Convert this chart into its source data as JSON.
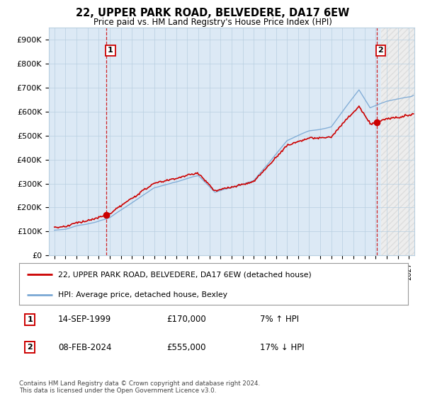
{
  "title": "22, UPPER PARK ROAD, BELVEDERE, DA17 6EW",
  "subtitle": "Price paid vs. HM Land Registry's House Price Index (HPI)",
  "yticks": [
    0,
    100000,
    200000,
    300000,
    400000,
    500000,
    600000,
    700000,
    800000,
    900000
  ],
  "ytick_labels": [
    "£0",
    "£100K",
    "£200K",
    "£300K",
    "£400K",
    "£500K",
    "£600K",
    "£700K",
    "£800K",
    "£900K"
  ],
  "legend_line1": "22, UPPER PARK ROAD, BELVEDERE, DA17 6EW (detached house)",
  "legend_line2": "HPI: Average price, detached house, Bexley",
  "note1_num": "1",
  "note1_date": "14-SEP-1999",
  "note1_price": "£170,000",
  "note1_hpi": "7% ↑ HPI",
  "note2_num": "2",
  "note2_date": "08-FEB-2024",
  "note2_price": "£555,000",
  "note2_hpi": "17% ↓ HPI",
  "footer": "Contains HM Land Registry data © Crown copyright and database right 2024.\nThis data is licensed under the Open Government Licence v3.0.",
  "sale1_year": 1999.71,
  "sale1_price": 170000,
  "sale2_year": 2024.1,
  "sale2_price": 555000,
  "background_color": "#ffffff",
  "plot_bg_color": "#dce9f5",
  "grid_color": "#b8cfe0",
  "line_red": "#cc0000",
  "line_blue": "#7aa8d4",
  "hatch_color": "#bbbbbb"
}
